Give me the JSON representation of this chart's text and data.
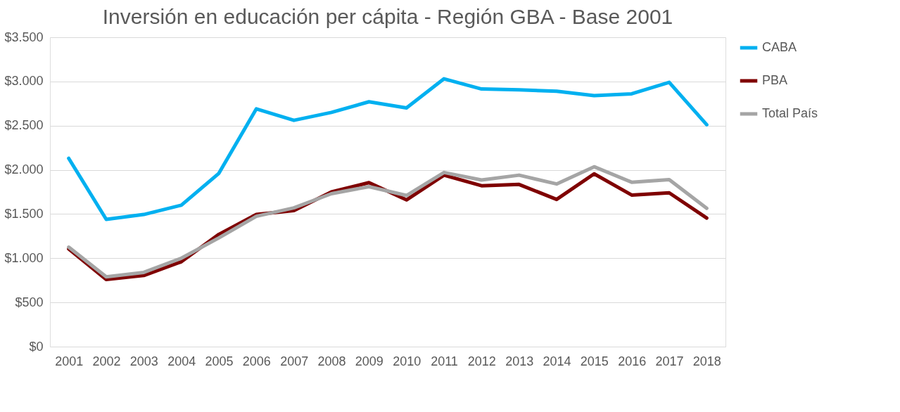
{
  "chart_data": {
    "type": "line",
    "title": "Inversión en educación per cápita - Región GBA - Base 2001",
    "categories": [
      "2001",
      "2002",
      "2003",
      "2004",
      "2005",
      "2006",
      "2007",
      "2008",
      "2009",
      "2010",
      "2011",
      "2012",
      "2013",
      "2014",
      "2015",
      "2016",
      "2017",
      "2018"
    ],
    "series": [
      {
        "name": "CABA",
        "color": "#00b0f0",
        "values": [
          2130,
          1440,
          1495,
          1600,
          1960,
          2690,
          2560,
          2650,
          2770,
          2700,
          3030,
          2915,
          2905,
          2890,
          2840,
          2860,
          2990,
          2510
        ]
      },
      {
        "name": "PBA",
        "color": "#7f0000",
        "values": [
          1105,
          760,
          805,
          960,
          1270,
          1495,
          1540,
          1750,
          1855,
          1660,
          1940,
          1820,
          1835,
          1665,
          1955,
          1715,
          1740,
          1455
        ]
      },
      {
        "name": "Total País",
        "color": "#a5a5a5",
        "values": [
          1125,
          790,
          840,
          1000,
          1230,
          1475,
          1570,
          1730,
          1810,
          1710,
          1970,
          1885,
          1940,
          1840,
          2035,
          1860,
          1890,
          1565
        ]
      }
    ],
    "ylim": [
      0,
      3500
    ],
    "yticks": [
      {
        "value": 0,
        "label": "$0"
      },
      {
        "value": 500,
        "label": "$500"
      },
      {
        "value": 1000,
        "label": "$1.000"
      },
      {
        "value": 1500,
        "label": "$1.500"
      },
      {
        "value": 2000,
        "label": "$2.000"
      },
      {
        "value": 2500,
        "label": "$2.500"
      },
      {
        "value": 3000,
        "label": "$3.000"
      },
      {
        "value": 3500,
        "label": "$3.500"
      }
    ],
    "grid": "y",
    "legend": "right",
    "marker": "none",
    "line_style": "solid"
  }
}
